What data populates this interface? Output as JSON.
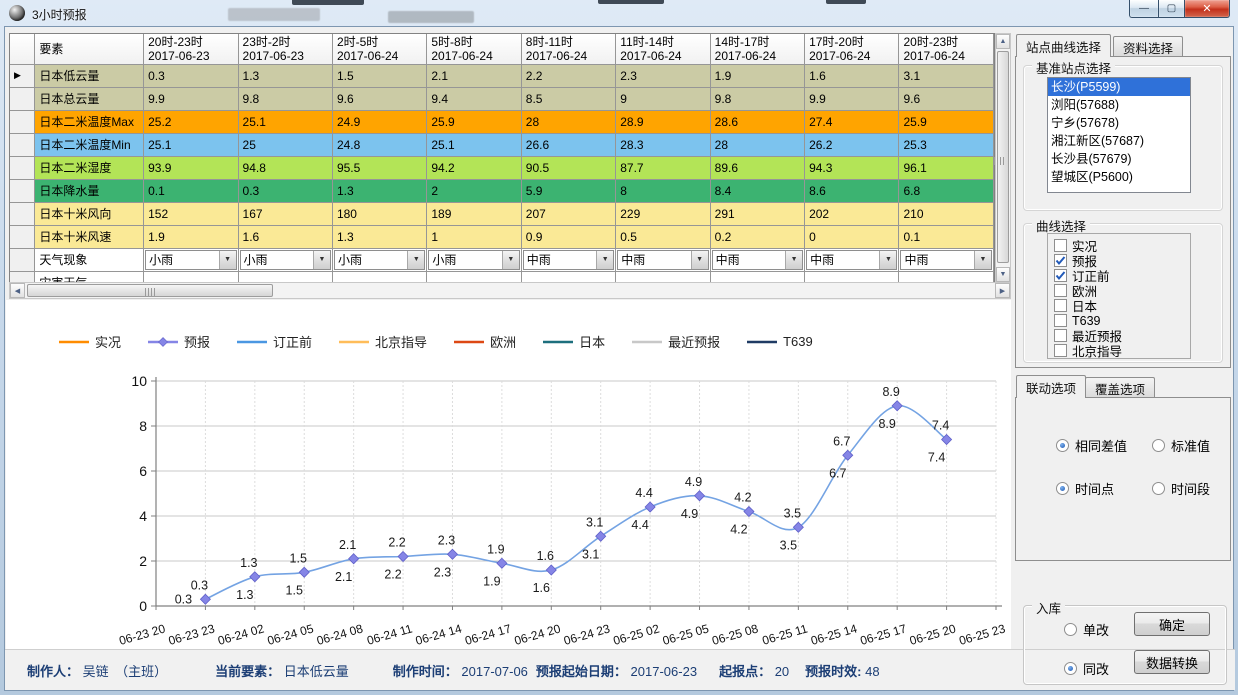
{
  "window": {
    "title": "3小时预报"
  },
  "icons": {
    "minimize": "—",
    "maximize": "▢",
    "close": "✕",
    "row_selector": "▶",
    "combo_arrow": "▼",
    "scroll_up": "▲",
    "scroll_down": "▼",
    "scroll_left": "◀",
    "scroll_right": "▶"
  },
  "table": {
    "element_header": "要素",
    "columns": [
      {
        "range": "20时-23时",
        "date": "2017-06-23"
      },
      {
        "range": "23时-2时",
        "date": "2017-06-23"
      },
      {
        "range": "2时-5时",
        "date": "2017-06-24"
      },
      {
        "range": "5时-8时",
        "date": "2017-06-24"
      },
      {
        "range": "8时-11时",
        "date": "2017-06-24"
      },
      {
        "range": "11时-14时",
        "date": "2017-06-24"
      },
      {
        "range": "14时-17时",
        "date": "2017-06-24"
      },
      {
        "range": "17时-20时",
        "date": "2017-06-24"
      },
      {
        "range": "20时-23时",
        "date": "2017-06-24"
      }
    ],
    "rows": [
      {
        "label": "日本低云量",
        "bg": "#cbcba5",
        "values": [
          "0.3",
          "1.3",
          "1.5",
          "2.1",
          "2.2",
          "2.3",
          "1.9",
          "1.6",
          "3.1"
        ]
      },
      {
        "label": "日本总云量",
        "bg": "#cbcba5",
        "values": [
          "9.9",
          "9.8",
          "9.6",
          "9.4",
          "8.5",
          "9",
          "9.8",
          "9.9",
          "9.6"
        ]
      },
      {
        "label": "日本二米温度Max",
        "bg": "#ffa400",
        "values": [
          "25.2",
          "25.1",
          "24.9",
          "25.9",
          "28",
          "28.9",
          "28.6",
          "27.4",
          "25.9"
        ]
      },
      {
        "label": "日本二米温度Min",
        "bg": "#7cc3ee",
        "values": [
          "25.1",
          "25",
          "24.8",
          "25.1",
          "26.6",
          "28.3",
          "28",
          "26.2",
          "25.3"
        ]
      },
      {
        "label": "日本二米湿度",
        "bg": "#b3e457",
        "values": [
          "93.9",
          "94.8",
          "95.5",
          "94.2",
          "90.5",
          "87.7",
          "89.6",
          "94.3",
          "96.1"
        ]
      },
      {
        "label": "日本降水量",
        "bg": "#3cb371",
        "values": [
          "0.1",
          "0.3",
          "1.3",
          "2",
          "5.9",
          "8",
          "8.4",
          "8.6",
          "6.8"
        ]
      },
      {
        "label": "日本十米风向",
        "bg": "#fae996",
        "values": [
          "152",
          "167",
          "180",
          "189",
          "207",
          "229",
          "291",
          "202",
          "210"
        ]
      },
      {
        "label": "日本十米风速",
        "bg": "#fae996",
        "values": [
          "1.9",
          "1.6",
          "1.3",
          "1",
          "0.9",
          "0.5",
          "0.2",
          "0",
          "0.1"
        ]
      },
      {
        "label": "天气现象",
        "bg": "#ffffff",
        "type": "dropdown",
        "values": [
          "小雨",
          "小雨",
          "小雨",
          "小雨",
          "中雨",
          "中雨",
          "中雨",
          "中雨",
          "中雨"
        ]
      },
      {
        "label": "灾害天气",
        "bg": "#ffffff",
        "values": [
          "",
          "",
          "",
          "",
          "",
          "",
          "",
          "",
          ""
        ]
      }
    ]
  },
  "chart_data": {
    "type": "line",
    "x_labels": [
      "06-23 20",
      "06-23 23",
      "06-24 02",
      "06-24 05",
      "06-24 08",
      "06-24 11",
      "06-24 14",
      "06-24 17",
      "06-24 20",
      "06-24 23",
      "06-25 02",
      "06-25 05",
      "06-25 08",
      "06-25 11",
      "06-25 14",
      "06-25 17",
      "06-25 20",
      "06-25 23"
    ],
    "series": [
      {
        "name": "预报",
        "color": "#8585e6",
        "marker": "diamond",
        "values": [
          null,
          0.3,
          1.3,
          1.5,
          2.1,
          2.2,
          2.3,
          1.9,
          1.6,
          3.1,
          4.4,
          4.9,
          4.2,
          3.5,
          6.7,
          8.9,
          7.4,
          null
        ]
      },
      {
        "name": "订正前",
        "color": "#74a3e3",
        "marker": "none",
        "values": [
          null,
          0.3,
          1.3,
          1.5,
          2.1,
          2.2,
          2.3,
          1.9,
          1.6,
          3.1,
          4.4,
          4.9,
          4.2,
          3.5,
          6.7,
          8.9,
          7.4,
          null
        ]
      }
    ],
    "ylim": [
      0,
      10
    ],
    "yticks": [
      0,
      2,
      4,
      6,
      8,
      10
    ],
    "grid": true,
    "legend_position": "top",
    "legend": [
      {
        "label": "实况",
        "color": "#ff8c00",
        "marker": "none"
      },
      {
        "label": "预报",
        "color": "#8585e6",
        "marker": "diamond"
      },
      {
        "label": "订正前",
        "color": "#4a97e2",
        "marker": "none"
      },
      {
        "label": "北京指导",
        "color": "#ffbd59",
        "marker": "none"
      },
      {
        "label": "欧洲",
        "color": "#dd4814",
        "marker": "none"
      },
      {
        "label": "日本",
        "color": "#1d6f7d",
        "marker": "none"
      },
      {
        "label": "最近预报",
        "color": "#c8c8c8",
        "marker": "none"
      },
      {
        "label": "T639",
        "color": "#1f3b64",
        "marker": "none"
      }
    ]
  },
  "sidebar": {
    "tabs": [
      {
        "label": "站点曲线选择",
        "active": true
      },
      {
        "label": "资料选择",
        "active": false
      }
    ],
    "station_group": "基准站点选择",
    "stations": [
      {
        "label": "长沙(P5599)",
        "selected": true
      },
      {
        "label": "浏阳(57688)",
        "selected": false
      },
      {
        "label": "宁乡(57678)",
        "selected": false
      },
      {
        "label": "湘江新区(57687)",
        "selected": false
      },
      {
        "label": "长沙县(57679)",
        "selected": false
      },
      {
        "label": "望城区(P5600)",
        "selected": false
      }
    ],
    "curve_group": "曲线选择",
    "curves": [
      {
        "label": "实况",
        "checked": false
      },
      {
        "label": "预报",
        "checked": true
      },
      {
        "label": "订正前",
        "checked": true
      },
      {
        "label": "欧洲",
        "checked": false
      },
      {
        "label": "日本",
        "checked": false
      },
      {
        "label": "T639",
        "checked": false
      },
      {
        "label": "最近预报",
        "checked": false
      },
      {
        "label": "北京指导",
        "checked": false
      }
    ],
    "option_tabs": [
      {
        "label": "联动选项",
        "active": true
      },
      {
        "label": "覆盖选项",
        "active": false
      }
    ],
    "option_radios": [
      {
        "label": "相同差值",
        "on": true
      },
      {
        "label": "标准值",
        "on": false
      },
      {
        "label": "时间点",
        "on": true
      },
      {
        "label": "时间段",
        "on": false
      }
    ],
    "storage_group": "入库",
    "storage_radios": [
      {
        "label": "单改",
        "on": false
      },
      {
        "label": "同改",
        "on": true
      }
    ],
    "confirm_button": "确定",
    "convert_button": "数据转换"
  },
  "statusbar": {
    "items": [
      {
        "label": "制作人：",
        "value": "吴链　（主班）"
      },
      {
        "label": "当前要素：",
        "value": "日本低云量"
      },
      {
        "label": "制作时间：",
        "value": "2017-07-06"
      },
      {
        "label": "预报起始日期：",
        "value": "2017-06-23"
      },
      {
        "label": "起报点：",
        "value": "20"
      },
      {
        "label": "预报时效:",
        "value": "48"
      }
    ]
  }
}
